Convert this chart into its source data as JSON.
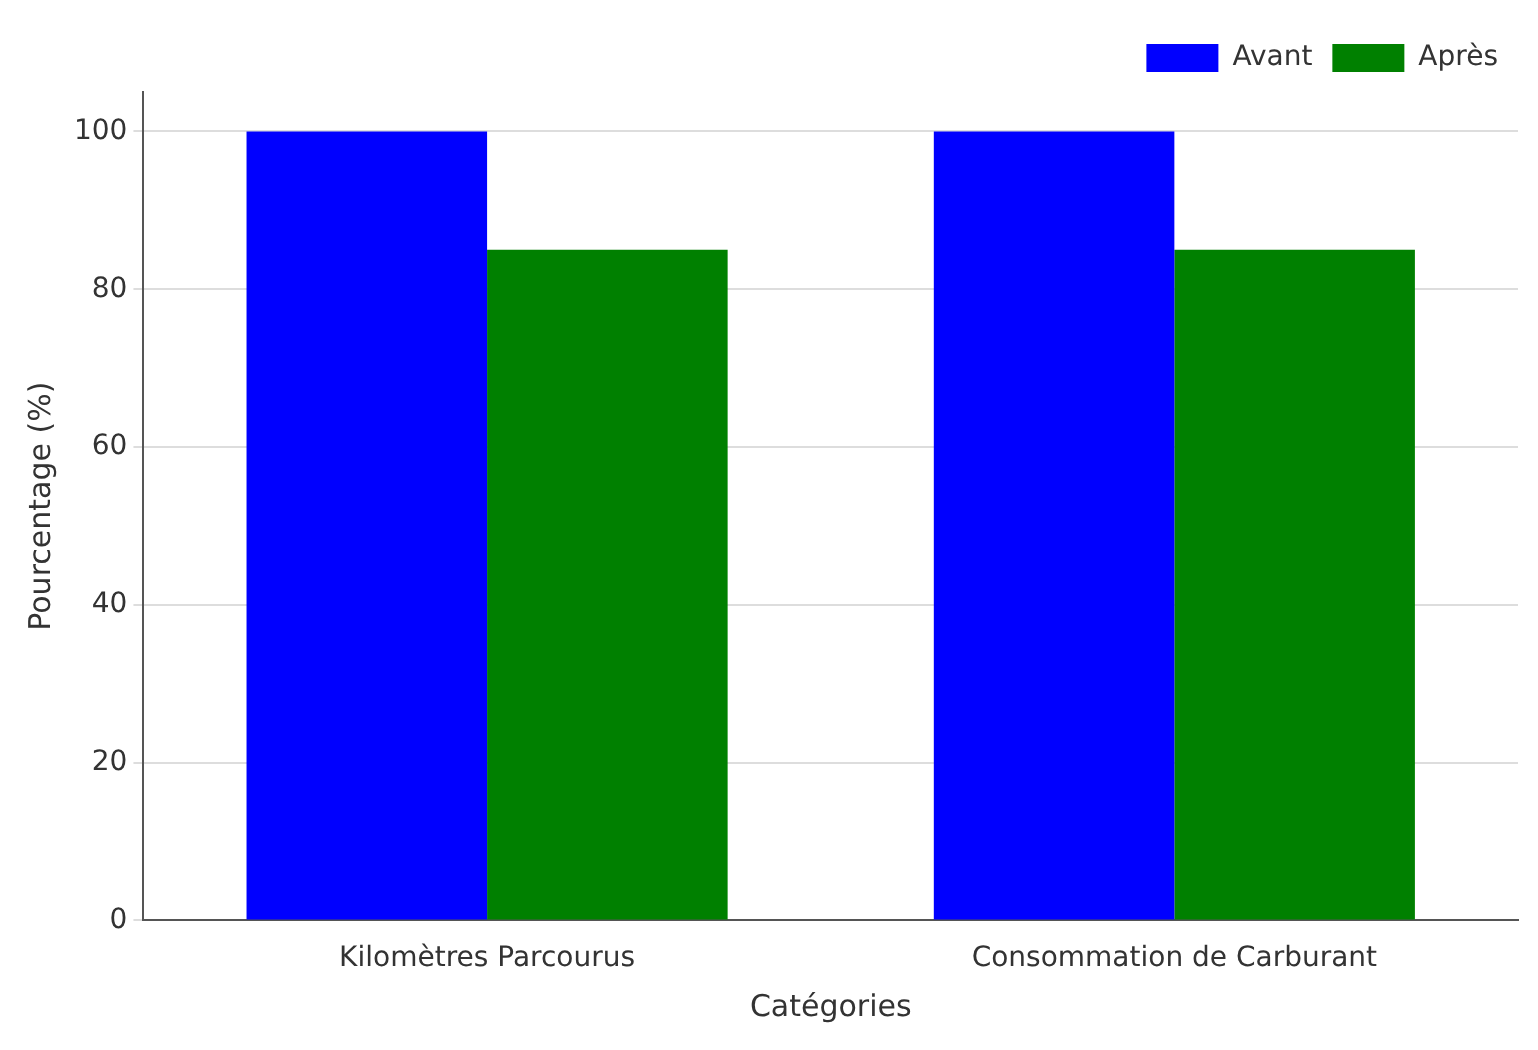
{
  "chart_data": {
    "type": "bar",
    "xlabel": "Catégories",
    "ylabel": "Pourcentage (%)",
    "categories": [
      "Kilomètres Parcourus",
      "Consommation de Carburant"
    ],
    "series": [
      {
        "name": "Avant",
        "color": "#0000ff",
        "values": [
          100,
          100
        ]
      },
      {
        "name": "Après",
        "color": "#008000",
        "values": [
          85,
          85
        ]
      }
    ],
    "ylim": [
      0,
      105
    ],
    "yticks": [
      0,
      20,
      40,
      60,
      80,
      100
    ],
    "grid": "y",
    "legend": "top right"
  }
}
